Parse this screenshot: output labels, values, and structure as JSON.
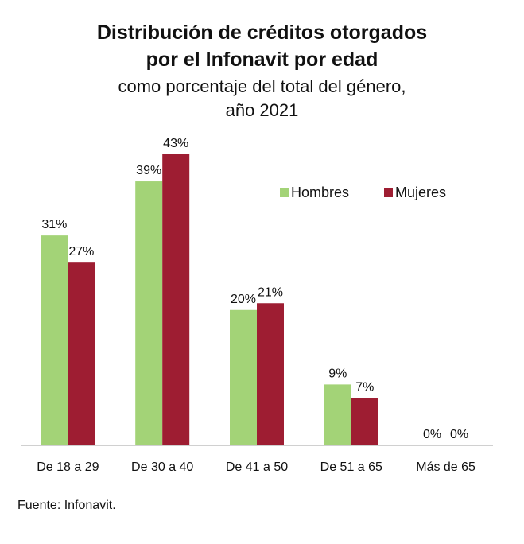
{
  "chart_data": {
    "type": "bar",
    "title": "Distribución de créditos otorgados por el Infonavit por edad",
    "title_line1": "Distribución de créditos otorgados",
    "title_line2": "por el Infonavit por edad",
    "subtitle_line1": "como porcentaje del total del género,",
    "subtitle_line2": "año 2021",
    "categories": [
      "De 18 a 29",
      "De 30 a 40",
      "De 41 a 50",
      "De 51 a 65",
      "Más de 65"
    ],
    "series": [
      {
        "name": "Hombres",
        "color": "#a3d377",
        "values": [
          31,
          39,
          20,
          9,
          0
        ],
        "labels": [
          "31%",
          "39%",
          "20%",
          "9%",
          "0%"
        ]
      },
      {
        "name": "Mujeres",
        "color": "#9e1d32",
        "values": [
          27,
          43,
          21,
          7,
          0
        ],
        "labels": [
          "27%",
          "43%",
          "21%",
          "7%",
          "0%"
        ]
      }
    ],
    "ylim": [
      0,
      43
    ],
    "xlabel": "",
    "ylabel": "",
    "grid": false,
    "legend": "top-right"
  },
  "source": "Fuente: Infonavit."
}
